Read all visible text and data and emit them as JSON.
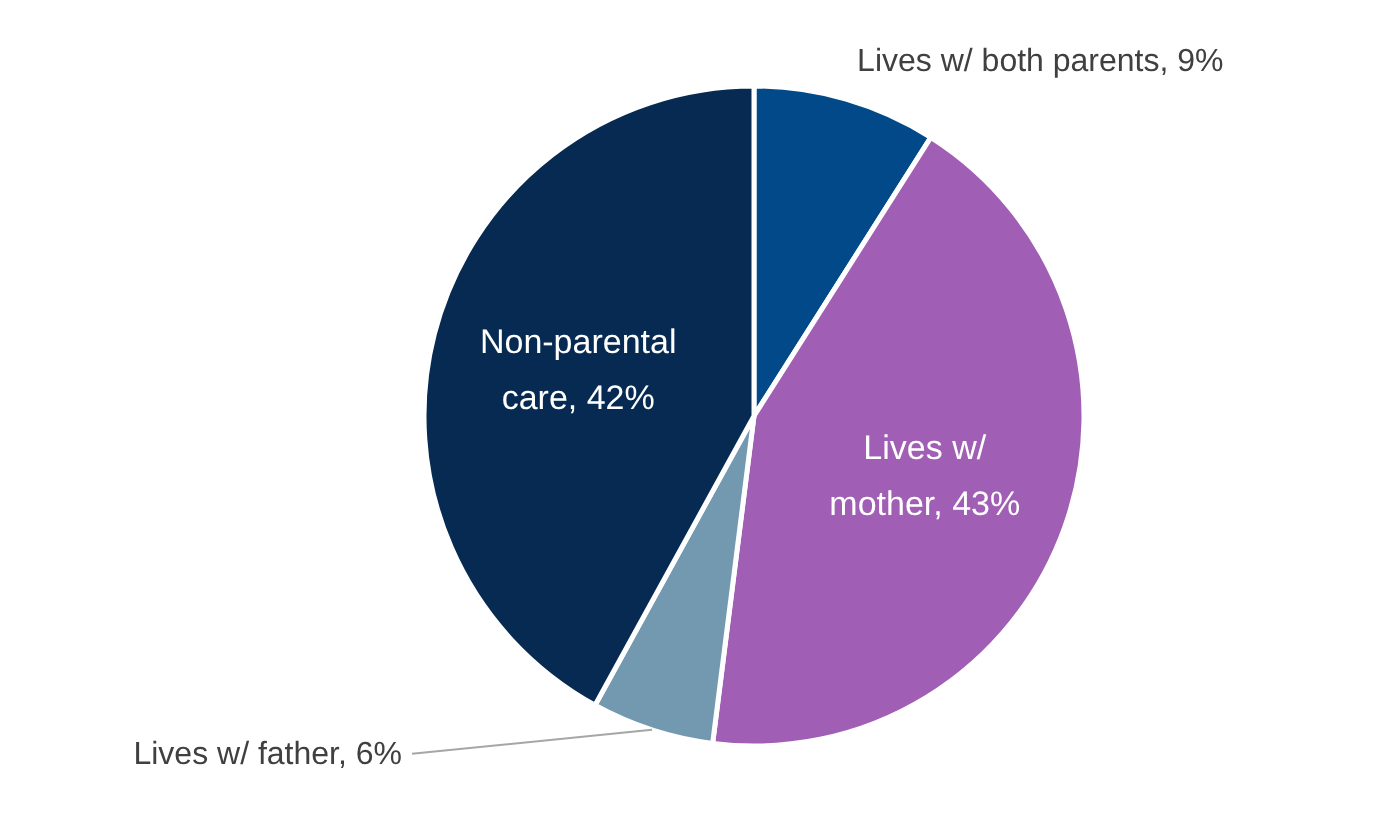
{
  "chart_data": {
    "type": "pie",
    "categories": [
      "Lives w/ both parents",
      "Lives w/ mother",
      "Lives w/ father",
      "Non-parental care"
    ],
    "values": [
      9,
      43,
      6,
      42
    ],
    "colors": [
      "#02498a",
      "#a05fb4",
      "#7399b1",
      "#062a52"
    ],
    "value_labels": [
      "9%",
      "43%",
      "6%",
      "42%"
    ]
  }
}
